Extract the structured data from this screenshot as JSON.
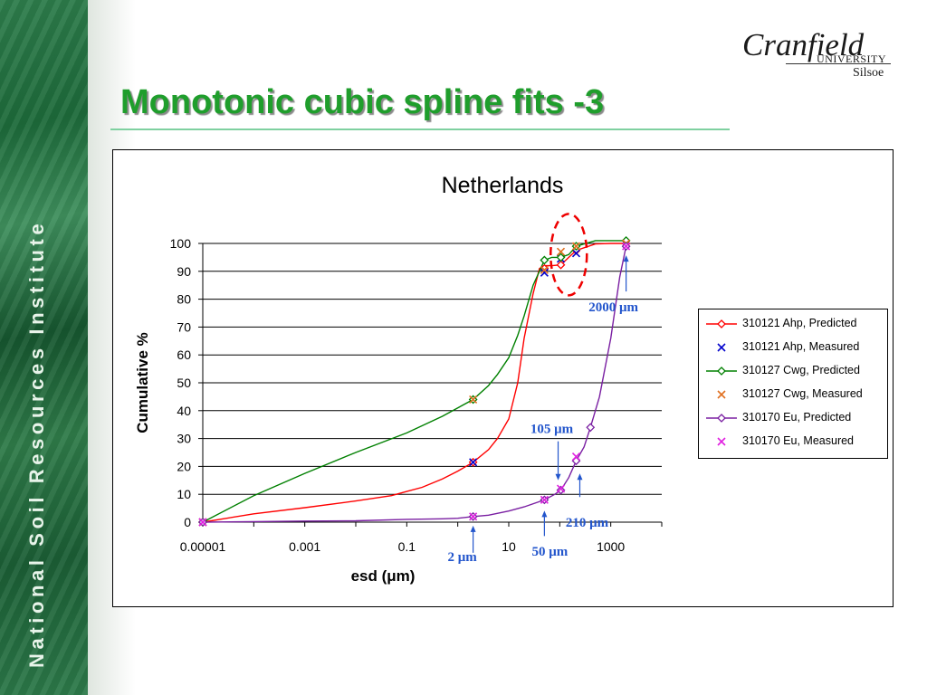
{
  "side_banner": {
    "text": "National Soil Resources Institute"
  },
  "logo": {
    "main": "Cranfield",
    "university": "UNIVERSITY",
    "campus": "Silsoe"
  },
  "slide_title": "Monotonic cubic spline fits -3",
  "colors": {
    "title_green": "#1f9e2c",
    "red": "#ff0000",
    "blue": "#0000cc",
    "green": "#008000",
    "orange": "#e07020",
    "purple": "#7a1fa2",
    "magenta": "#e020e0",
    "annotation": "#2255cc"
  },
  "chart_data": {
    "type": "line",
    "title": "Netherlands",
    "xlabel": "esd (μm)",
    "ylabel": "Cumulative %",
    "x_scale": "log",
    "xlim": [
      1e-05,
      10000
    ],
    "ylim": [
      0,
      100
    ],
    "x_ticks": [
      "0.00001",
      "0.001",
      "0.1",
      "10",
      "1000"
    ],
    "y_ticks": [
      "0",
      "10",
      "20",
      "30",
      "40",
      "50",
      "60",
      "70",
      "80",
      "90",
      "100"
    ],
    "grid": "horizontal",
    "legend_position": "right",
    "series": [
      {
        "name": "310121 Ahp, Predicted",
        "kind": "line-diamond",
        "color": "#ff0000",
        "x": [
          1e-05,
          0.0001,
          0.001,
          0.01,
          0.05,
          0.1,
          0.2,
          0.5,
          1,
          2,
          4,
          6,
          10,
          15,
          20,
          30,
          40,
          50,
          70,
          105,
          150,
          210,
          500,
          1000,
          2000
        ],
        "y": [
          0,
          3,
          5.2,
          7.6,
          9.5,
          11,
          12.5,
          15.5,
          18.3,
          21.5,
          26,
          30,
          37,
          50,
          66,
          82,
          91,
          92,
          92,
          92.3,
          95,
          97.5,
          99.8,
          100,
          100
        ],
        "markers_x": [
          1e-05,
          2,
          50,
          105,
          210,
          2000
        ],
        "markers_y": [
          0,
          21.5,
          91,
          92.3,
          97.5,
          100
        ]
      },
      {
        "name": "310121 Ahp, Measured",
        "kind": "cross",
        "color": "#0000cc",
        "x": [
          1e-05,
          2,
          50,
          105,
          210,
          2000
        ],
        "y": [
          0,
          21.5,
          89.5,
          94.5,
          96.5,
          100
        ]
      },
      {
        "name": "310127 Cwg, Predicted",
        "kind": "line-diamond",
        "color": "#008000",
        "x": [
          1e-05,
          0.0001,
          0.001,
          0.01,
          0.1,
          0.5,
          1,
          2,
          4,
          6,
          10,
          15,
          20,
          30,
          50,
          70,
          105,
          150,
          210,
          500,
          1000,
          2000
        ],
        "y": [
          0,
          9.5,
          17.5,
          25,
          32,
          38,
          41,
          44,
          49,
          53,
          59,
          67,
          74,
          85,
          94,
          95,
          95,
          96,
          99,
          101,
          101,
          101
        ],
        "markers_x": [
          1e-05,
          2,
          50,
          105,
          210,
          2000
        ],
        "markers_y": [
          0,
          44,
          94,
          95,
          99,
          101
        ]
      },
      {
        "name": "310127 Cwg, Measured",
        "kind": "cross",
        "color": "#e07020",
        "x": [
          1e-05,
          2,
          50,
          105,
          210,
          2000
        ],
        "y": [
          0,
          44,
          90.5,
          97,
          99,
          100
        ]
      },
      {
        "name": "310170 Eu, Predicted",
        "kind": "line-diamond",
        "color": "#7a1fa2",
        "x": [
          1e-05,
          0.0001,
          0.001,
          0.01,
          0.1,
          0.5,
          1,
          2,
          4,
          10,
          20,
          50,
          80,
          105,
          150,
          210,
          300,
          400,
          600,
          1000,
          1500,
          2000
        ],
        "y": [
          0,
          0.2,
          0.4,
          0.5,
          1,
          1.2,
          1.4,
          2,
          2.5,
          4,
          5.5,
          8,
          10,
          11.5,
          16,
          22,
          27,
          34,
          45,
          66,
          88,
          99
        ],
        "markers_x": [
          1e-05,
          2,
          50,
          105,
          210,
          400,
          2000
        ],
        "markers_y": [
          0,
          2,
          8,
          11.5,
          22,
          34,
          99
        ]
      },
      {
        "name": "310170 Eu, Measured",
        "kind": "cross",
        "color": "#e020e0",
        "x": [
          1e-05,
          2,
          50,
          105,
          210,
          2000
        ],
        "y": [
          0,
          2,
          8,
          12,
          23.5,
          99
        ]
      }
    ],
    "annotations": [
      {
        "text": "2000 μm",
        "x": 2000,
        "y": 100
      },
      {
        "text": "105 μm",
        "x": 105,
        "y": 15
      },
      {
        "text": "210 μm",
        "x": 210,
        "y": 12
      },
      {
        "text": "50 μm",
        "x": 50,
        "y": 7
      },
      {
        "text": "2 μm",
        "x": 2,
        "y": 2
      }
    ]
  }
}
